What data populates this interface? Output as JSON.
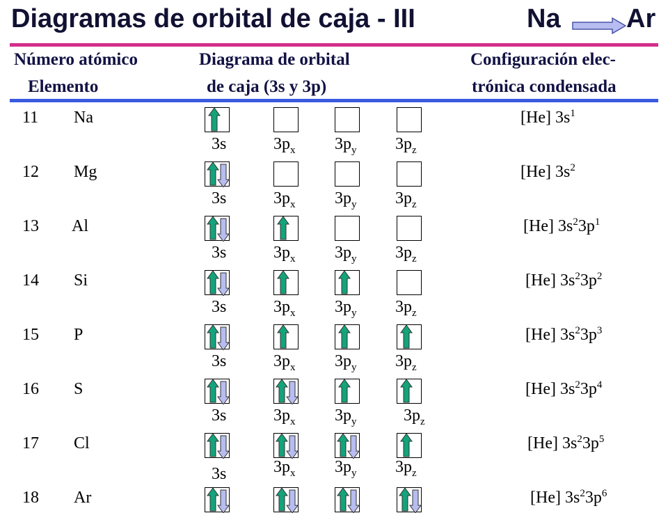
{
  "title": {
    "text": "Diagramas de orbital de caja - III",
    "from": "Na",
    "to": "Ar",
    "arrow_icon": "arrow-right-icon"
  },
  "headers": {
    "col1_line1": "Número atómico",
    "col1_line2": "Elemento",
    "col2_line1": "Diagrama de orbital",
    "col2_line2": "de caja (3s y 3p)",
    "col3_line1": "Configuración elec-",
    "col3_line2": "trónica condensada"
  },
  "orbital_labels": {
    "s": "3s",
    "p_prefix": "3p",
    "px": "x",
    "py": "y",
    "pz": "z"
  },
  "colors": {
    "rule_top": "#d42f8c",
    "rule_mid": "#3a5be0",
    "arrow_up": "#14a37a",
    "arrow_down": "#b7bdf0"
  },
  "rows": [
    {
      "z": "11",
      "el": "Na",
      "core": "[He] 3s",
      "s_exp": "1",
      "p_part": "",
      "p_exp": "",
      "boxes": [
        "u",
        "",
        "",
        ""
      ]
    },
    {
      "z": "12",
      "el": "Mg",
      "core": "[He] 3s",
      "s_exp": "2",
      "p_part": "",
      "p_exp": "",
      "boxes": [
        "ud",
        "",
        "",
        ""
      ]
    },
    {
      "z": "13",
      "el": "Al",
      "core": "[He] 3s",
      "s_exp": "2",
      "p_part": "3p",
      "p_exp": "1",
      "boxes": [
        "ud",
        "u",
        "",
        ""
      ]
    },
    {
      "z": "14",
      "el": "Si",
      "core": "[He] 3s",
      "s_exp": "2",
      "p_part": "3p",
      "p_exp": "2",
      "boxes": [
        "ud",
        "u",
        "u",
        ""
      ]
    },
    {
      "z": "15",
      "el": "P",
      "core": "[He] 3s",
      "s_exp": "2",
      "p_part": "3p",
      "p_exp": "3",
      "boxes": [
        "ud",
        "u",
        "u",
        "u"
      ]
    },
    {
      "z": "16",
      "el": "S",
      "core": "[He] 3s",
      "s_exp": "2",
      "p_part": "3p",
      "p_exp": "4",
      "boxes": [
        "ud",
        "ud",
        "u",
        "u"
      ]
    },
    {
      "z": "17",
      "el": "Cl",
      "core": "[He] 3s",
      "s_exp": "2",
      "p_part": "3p",
      "p_exp": "5",
      "boxes": [
        "ud",
        "ud",
        "ud",
        "u"
      ]
    },
    {
      "z": "18",
      "el": "Ar",
      "core": "[He] 3s",
      "s_exp": "2",
      "p_part": "3p",
      "p_exp": "6",
      "boxes": [
        "ud",
        "ud",
        "ud",
        "ud"
      ]
    }
  ]
}
